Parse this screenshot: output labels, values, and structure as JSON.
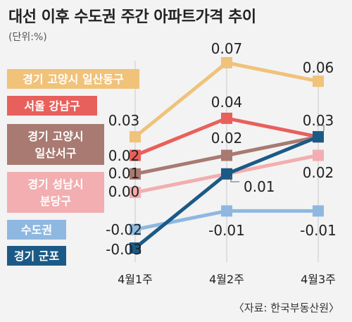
{
  "header": {
    "title": "대선 이후 수도권 주간 아파트가격 추이",
    "unit": "(단위:%)",
    "source": "〈자료: 한국부동산원〉"
  },
  "chart_data": {
    "type": "line",
    "categories": [
      "4월1주",
      "4월2주",
      "4월3주"
    ],
    "ylim": [
      -0.03,
      0.07
    ],
    "series": [
      {
        "name": "경기 고양시 일산동구",
        "color": "#f0c27a",
        "values": [
          0.03,
          0.07,
          0.06
        ],
        "label_texts": [
          "0.03",
          "0.07",
          "0.06"
        ]
      },
      {
        "name": "서울 강남구",
        "color": "#e8605c",
        "values": [
          0.02,
          0.04,
          0.03
        ],
        "label_texts": [
          "0.02",
          "0.04",
          "0.03"
        ]
      },
      {
        "name": "경기 고양시 일산서구",
        "color": "#a87a72",
        "values": [
          0.01,
          0.02,
          0.03
        ],
        "label_texts": [
          "0.01",
          "0.02",
          ""
        ]
      },
      {
        "name": "경기 성남시 분당구",
        "color": "#f2aeb0",
        "values": [
          0.0,
          0.01,
          0.02
        ],
        "label_texts": [
          "0.00",
          "0.01",
          "0.02"
        ]
      },
      {
        "name": "수도권",
        "color": "#8fb8e0",
        "values": [
          -0.02,
          -0.01,
          -0.01
        ],
        "label_texts": [
          "-0.02",
          "-0.01",
          "-0.01"
        ]
      },
      {
        "name": "경기 군포",
        "color": "#1b5a86",
        "values": [
          -0.03,
          0.01,
          0.03
        ],
        "label_texts": [
          "-0.03",
          "",
          ""
        ]
      }
    ]
  }
}
